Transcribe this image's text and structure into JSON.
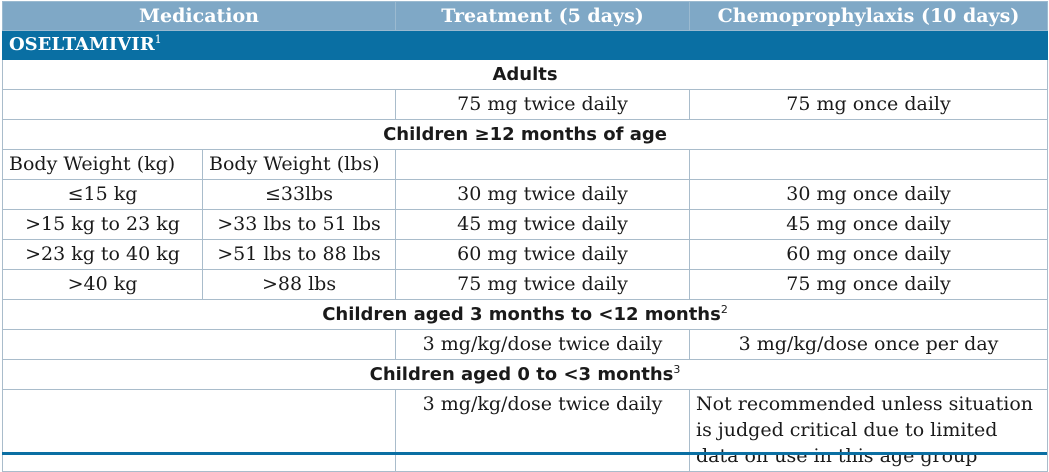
{
  "header": {
    "medication": "Medication",
    "treatment": "Treatment (5 days)",
    "chemo": "Chemoprophylaxis (10 days)"
  },
  "drug": {
    "name": "OSELTAMIVIR",
    "note": "1"
  },
  "adults": {
    "title": "Adults",
    "treatment": "75 mg twice daily",
    "chemo": "75 mg once daily"
  },
  "children12": {
    "title": "Children ≥12 months of age",
    "col_kg": "Body Weight (kg)",
    "col_lbs": "Body Weight (lbs)",
    "rows": [
      {
        "kg": "≤15 kg",
        "lbs": "≤33lbs",
        "treatment": "30 mg twice daily",
        "chemo": "30 mg once daily"
      },
      {
        "kg": ">15 kg to 23 kg",
        "lbs": ">33 lbs to 51 lbs",
        "treatment": "45 mg twice daily",
        "chemo": "45 mg once daily"
      },
      {
        "kg": ">23 kg to 40 kg",
        "lbs": ">51 lbs to 88 lbs",
        "treatment": "60 mg twice daily",
        "chemo": "60 mg once daily"
      },
      {
        "kg": ">40 kg",
        "lbs": ">88 lbs",
        "treatment": "75 mg twice daily",
        "chemo": "75 mg once daily"
      }
    ]
  },
  "children3to12": {
    "title": "Children aged 3 months to <12 months",
    "note": "2",
    "treatment": "3 mg/kg/dose twice daily",
    "chemo": "3 mg/kg/dose once per day"
  },
  "children0to3": {
    "title": "Children aged 0 to <3 months",
    "note": "3",
    "treatment": "3 mg/kg/dose twice daily",
    "chemo": "Not recommended unless situation is judged critical due to limited data on use in this age group"
  }
}
